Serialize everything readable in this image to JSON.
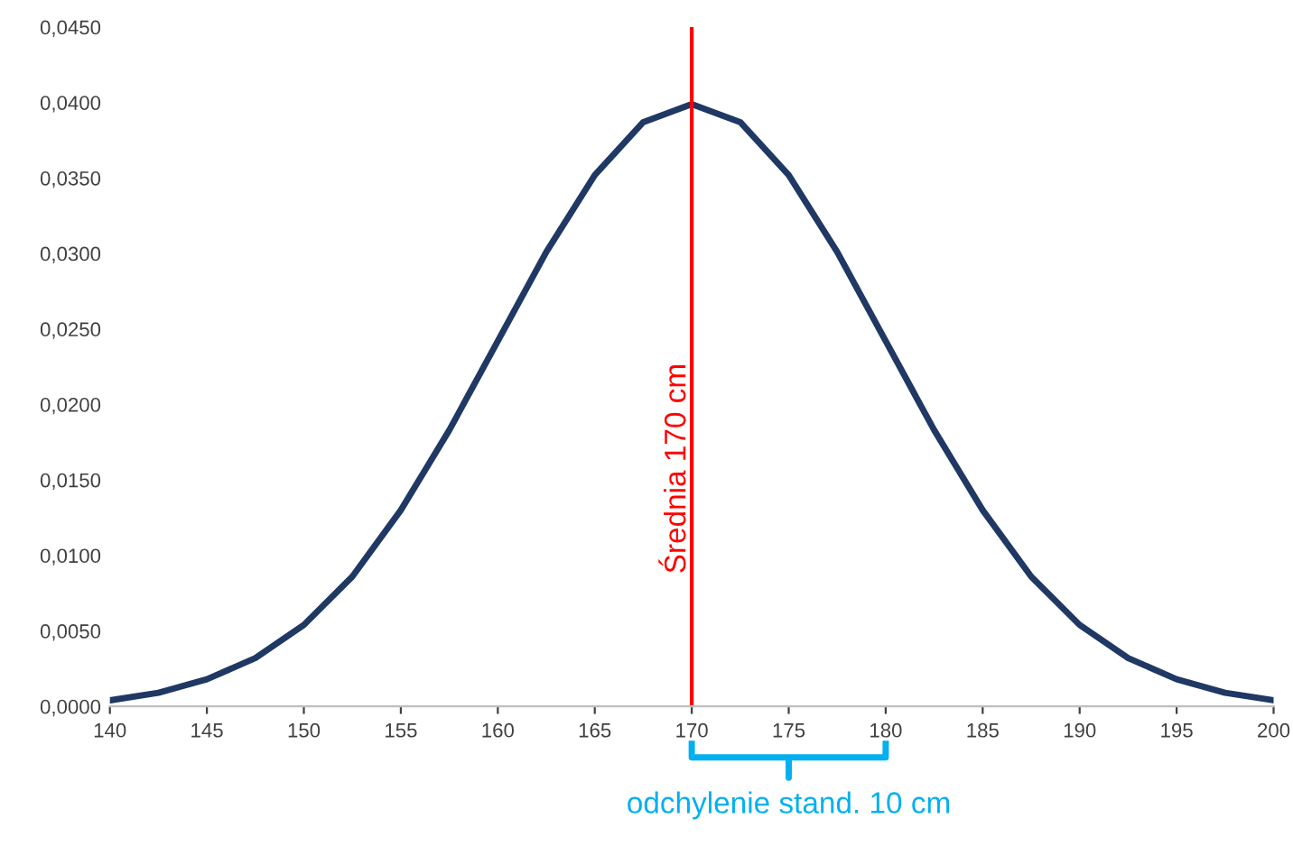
{
  "chart_data": {
    "type": "line",
    "x": [
      140,
      142.5,
      145,
      147.5,
      150,
      152.5,
      155,
      157.5,
      160,
      162.5,
      165,
      167.5,
      170,
      172.5,
      175,
      177.5,
      180,
      182.5,
      185,
      187.5,
      190,
      192.5,
      195,
      197.5,
      200
    ],
    "series": [
      {
        "color": "#1f3864",
        "values": [
          0.0004,
          0.0009,
          0.0018,
          0.0032,
          0.0054,
          0.0086,
          0.013,
          0.0183,
          0.0242,
          0.0301,
          0.0352,
          0.0387,
          0.0399,
          0.0387,
          0.0352,
          0.0301,
          0.0242,
          0.0183,
          0.013,
          0.0086,
          0.0054,
          0.0032,
          0.0018,
          0.0009,
          0.0004
        ]
      }
    ],
    "xlim": [
      140,
      200
    ],
    "xticks": [
      140,
      145,
      150,
      155,
      160,
      165,
      170,
      175,
      180,
      185,
      190,
      195,
      200
    ],
    "ylim": [
      0,
      0.045
    ],
    "yticks": [
      {
        "value": 0,
        "label": "0,0000"
      },
      {
        "value": 0.005,
        "label": "0,0050"
      },
      {
        "value": 0.01,
        "label": "0,0100"
      },
      {
        "value": 0.015,
        "label": "0,0150"
      },
      {
        "value": 0.02,
        "label": "0,0200"
      },
      {
        "value": 0.025,
        "label": "0,0250"
      },
      {
        "value": 0.03,
        "label": "0,0300"
      },
      {
        "value": 0.035,
        "label": "0,0350"
      },
      {
        "value": 0.04,
        "label": "0,0400"
      },
      {
        "value": 0.045,
        "label": "0,0450"
      }
    ],
    "ref_lines": [
      {
        "axis": "x",
        "value": 170,
        "label": "Średnia 170 cm",
        "color": "#ff0000"
      }
    ],
    "annotations": [
      "odchylenie stand. 10 cm"
    ],
    "grid": false,
    "legend": false,
    "marker": "none",
    "line_style": "solid"
  }
}
